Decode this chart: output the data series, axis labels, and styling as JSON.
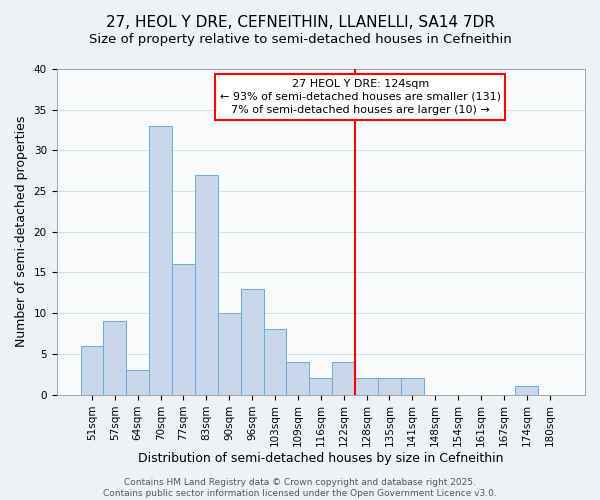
{
  "title": "27, HEOL Y DRE, CEFNEITHIN, LLANELLI, SA14 7DR",
  "subtitle": "Size of property relative to semi-detached houses in Cefneithin",
  "xlabel": "Distribution of semi-detached houses by size in Cefneithin",
  "ylabel": "Number of semi-detached properties",
  "bar_labels": [
    "51sqm",
    "57sqm",
    "64sqm",
    "70sqm",
    "77sqm",
    "83sqm",
    "90sqm",
    "96sqm",
    "103sqm",
    "109sqm",
    "116sqm",
    "122sqm",
    "128sqm",
    "135sqm",
    "141sqm",
    "148sqm",
    "154sqm",
    "161sqm",
    "167sqm",
    "174sqm",
    "180sqm"
  ],
  "bar_values": [
    6,
    9,
    3,
    33,
    16,
    27,
    10,
    13,
    8,
    4,
    2,
    4,
    2,
    2,
    2,
    0,
    0,
    0,
    0,
    1,
    0
  ],
  "bar_color": "#c8d8ea",
  "bar_edge_color": "#6aacdc",
  "vline_color": "red",
  "vline_index": 11.5,
  "ylim": [
    0,
    40
  ],
  "yticks": [
    0,
    5,
    10,
    15,
    20,
    25,
    30,
    35,
    40
  ],
  "annotation_title": "27 HEOL Y DRE: 124sqm",
  "annotation_line1": "← 93% of semi-detached houses are smaller (131)",
  "annotation_line2": "7% of semi-detached houses are larger (10) →",
  "footer_line1": "Contains HM Land Registry data © Crown copyright and database right 2025.",
  "footer_line2": "Contains public sector information licensed under the Open Government Licence v3.0.",
  "title_fontsize": 11,
  "subtitle_fontsize": 9.5,
  "axis_label_fontsize": 9,
  "tick_fontsize": 7.5,
  "annotation_fontsize": 8,
  "footer_fontsize": 6.5,
  "bg_color": "#eef2f6",
  "plot_bg_color": "#f8fafc",
  "grid_color": "#d0d8e0"
}
